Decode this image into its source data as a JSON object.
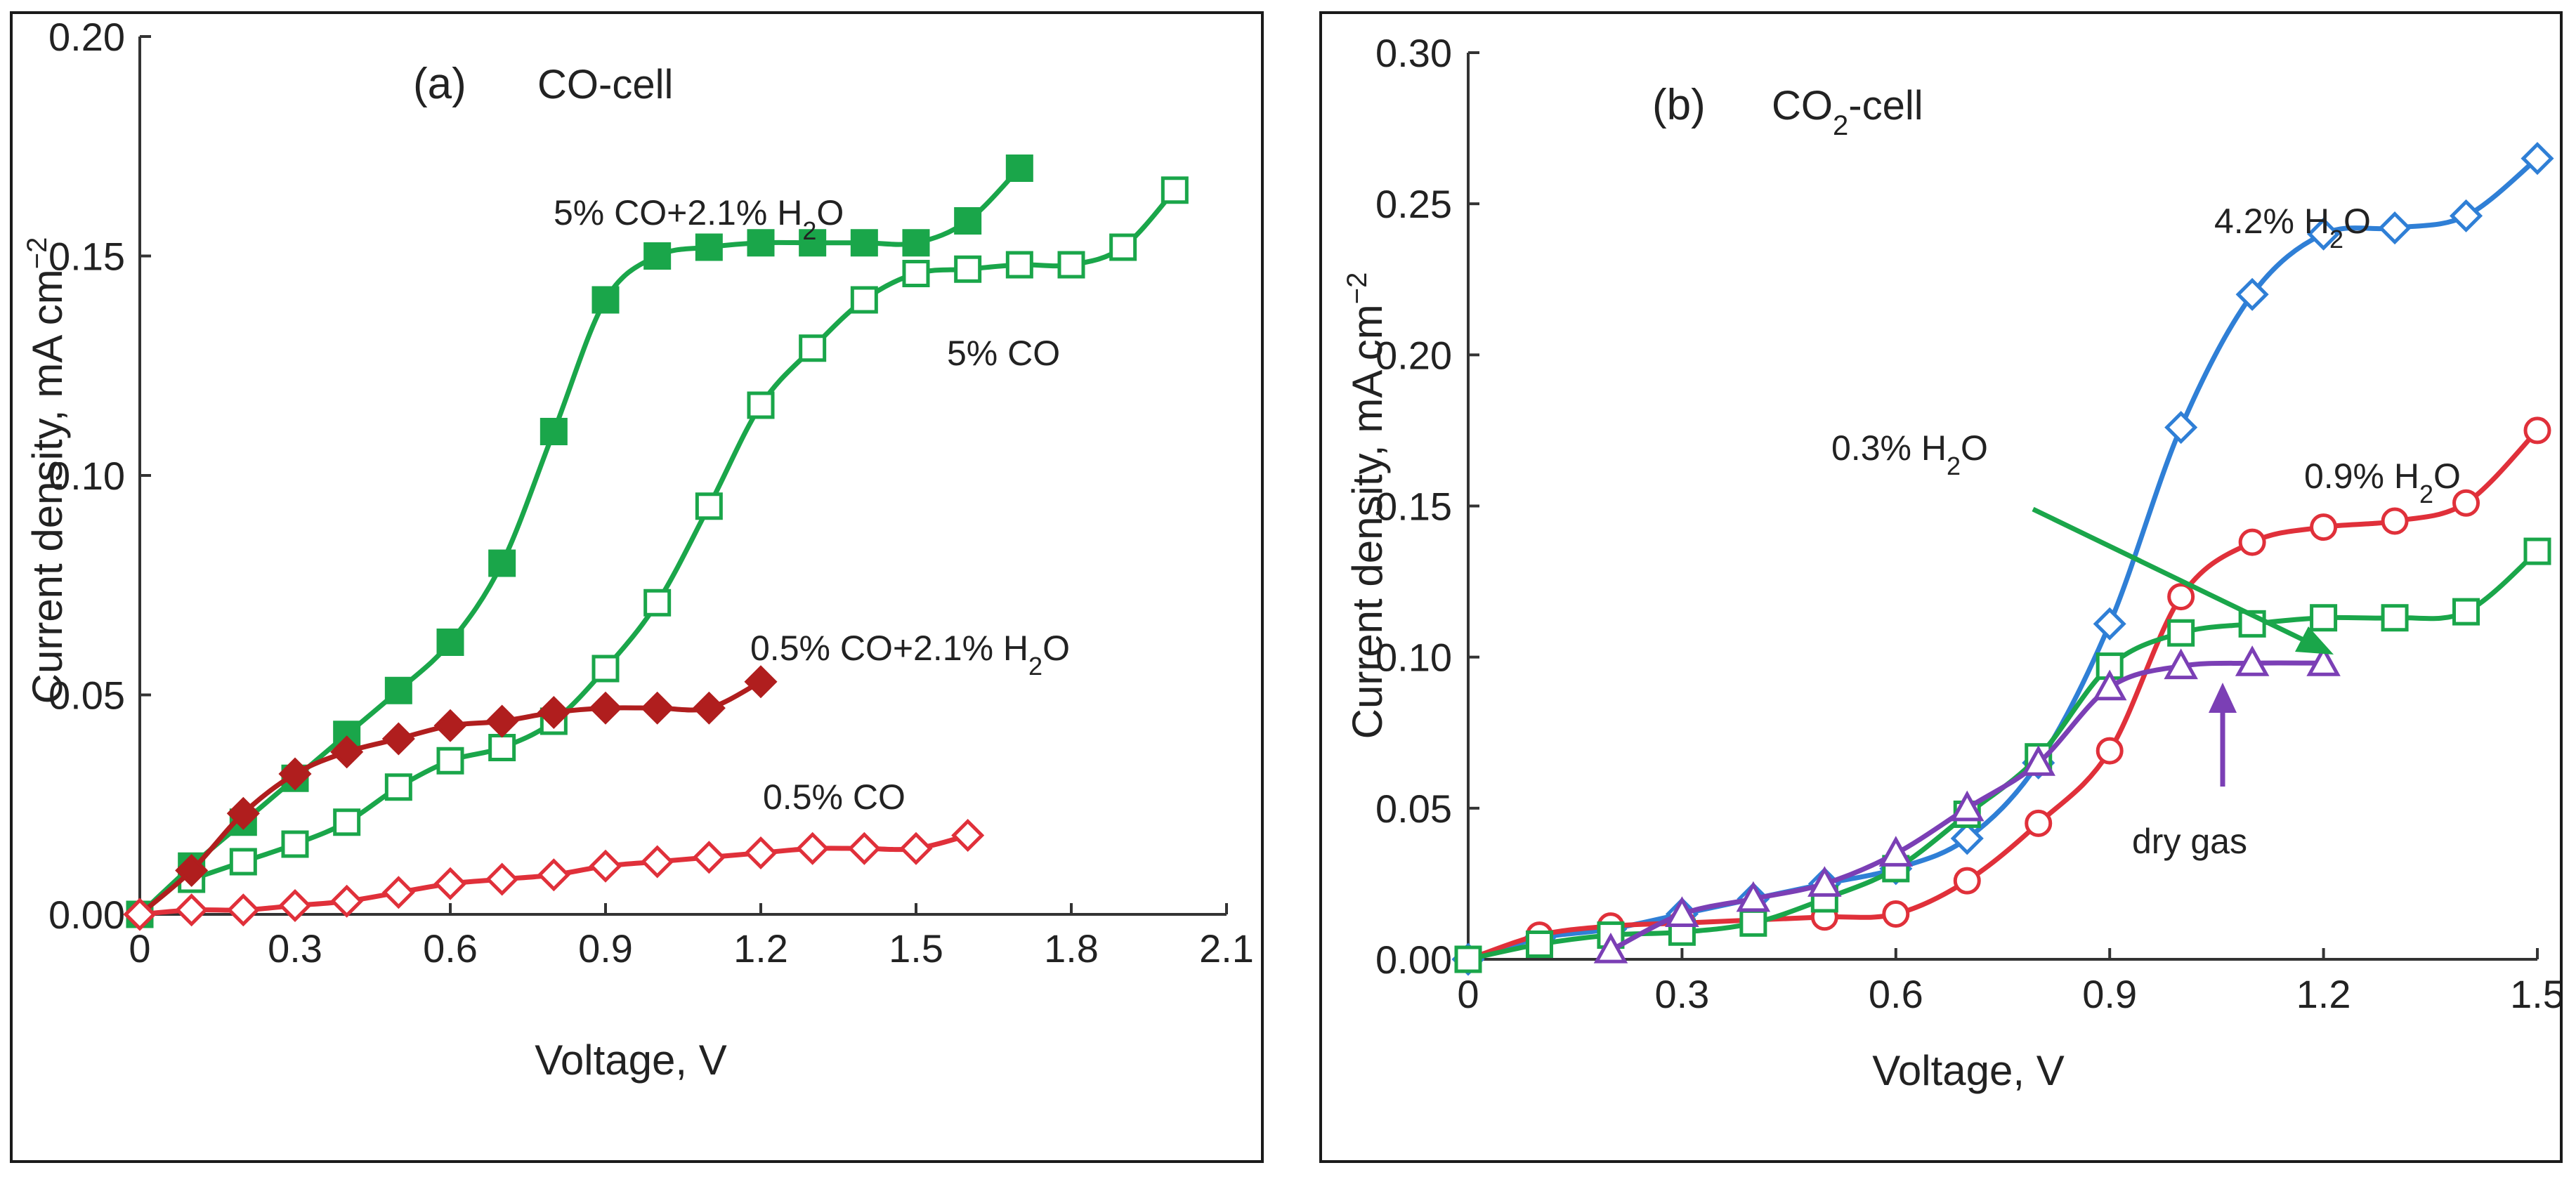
{
  "chart_data": [
    {
      "type": "line",
      "panel_tag": "(a)",
      "title_main": "CO-cell",
      "title_sub": "",
      "title_tail": "",
      "xlabel": "Voltage, V",
      "ylabel": "Current density, mA cm",
      "ylabel_sup": "−2",
      "xlim": [
        0,
        2.1
      ],
      "ylim": [
        0,
        0.2
      ],
      "xticks": [
        "0",
        "0.3",
        "0.6",
        "0.9",
        "1.2",
        "1.5",
        "1.8",
        "2.1"
      ],
      "yticks": [
        "0.00",
        "0.05",
        "0.10",
        "0.15",
        "0.20"
      ],
      "grid": false,
      "series": [
        {
          "label": {
            "t1": "5% CO+2.1% H",
            "t2": "2",
            "t3": "O"
          },
          "color": "#1aa64a",
          "marker": "square-filled",
          "x": [
            0,
            0.1,
            0.2,
            0.3,
            0.4,
            0.5,
            0.6,
            0.7,
            0.8,
            0.9,
            1.0,
            1.1,
            1.2,
            1.3,
            1.4,
            1.5,
            1.6,
            1.7
          ],
          "y": [
            0,
            0.011,
            0.021,
            0.031,
            0.041,
            0.051,
            0.062,
            0.08,
            0.11,
            0.14,
            0.15,
            0.152,
            0.153,
            0.153,
            0.153,
            0.153,
            0.158,
            0.17
          ]
        },
        {
          "label": {
            "t1": "5% CO",
            "t2": "",
            "t3": ""
          },
          "color": "#1aa64a",
          "marker": "square-open",
          "x": [
            0.1,
            0.2,
            0.3,
            0.4,
            0.5,
            0.6,
            0.7,
            0.8,
            0.9,
            1.0,
            1.1,
            1.2,
            1.3,
            1.4,
            1.5,
            1.6,
            1.7,
            1.8,
            1.9,
            2.0
          ],
          "y": [
            0.008,
            0.012,
            0.016,
            0.021,
            0.029,
            0.035,
            0.038,
            0.044,
            0.056,
            0.071,
            0.093,
            0.116,
            0.129,
            0.14,
            0.146,
            0.147,
            0.148,
            0.148,
            0.152,
            0.165
          ]
        },
        {
          "label": {
            "t1": "0.5% CO+2.1% H",
            "t2": "2",
            "t3": "O"
          },
          "color": "#b01e1e",
          "marker": "diamond-filled",
          "x": [
            0,
            0.1,
            0.2,
            0.3,
            0.4,
            0.5,
            0.6,
            0.7,
            0.8,
            0.9,
            1.0,
            1.1,
            1.2
          ],
          "y": [
            0,
            0.01,
            0.023,
            0.032,
            0.037,
            0.04,
            0.043,
            0.044,
            0.046,
            0.047,
            0.047,
            0.047,
            0.053
          ]
        },
        {
          "label": {
            "t1": "0.5% CO",
            "t2": "",
            "t3": ""
          },
          "color": "#e0303a",
          "marker": "diamond-open",
          "x": [
            0,
            0.1,
            0.2,
            0.3,
            0.4,
            0.5,
            0.6,
            0.7,
            0.8,
            0.9,
            1.0,
            1.1,
            1.2,
            1.3,
            1.4,
            1.5,
            1.6
          ],
          "y": [
            0,
            0.001,
            0.001,
            0.002,
            0.003,
            0.005,
            0.007,
            0.008,
            0.009,
            0.011,
            0.012,
            0.013,
            0.014,
            0.015,
            0.015,
            0.015,
            0.018
          ]
        }
      ]
    },
    {
      "type": "line",
      "panel_tag": "(b)",
      "title_main": "CO",
      "title_sub": "2",
      "title_tail": "-cell",
      "xlabel": "Voltage, V",
      "ylabel": "Current density, mA cm",
      "ylabel_sup": "−2",
      "xlim": [
        0,
        1.5
      ],
      "ylim": [
        0,
        0.3
      ],
      "xticks": [
        "0",
        "0.3",
        "0.6",
        "0.9",
        "1.2",
        "1.5"
      ],
      "yticks": [
        "0.00",
        "0.05",
        "0.10",
        "0.15",
        "0.20",
        "0.25",
        "0.30"
      ],
      "grid": false,
      "series": [
        {
          "label": {
            "t1": "4.2% H",
            "t2": "2",
            "t3": "O"
          },
          "color": "#2f7fd6",
          "marker": "diamond-open",
          "x": [
            0,
            0.1,
            0.2,
            0.3,
            0.4,
            0.5,
            0.6,
            0.7,
            0.8,
            0.9,
            1.0,
            1.1,
            1.2,
            1.3,
            1.4,
            1.5
          ],
          "y": [
            0,
            0.007,
            0.01,
            0.015,
            0.02,
            0.025,
            0.03,
            0.04,
            0.065,
            0.111,
            0.176,
            0.22,
            0.24,
            0.242,
            0.246,
            0.265
          ]
        },
        {
          "label": {
            "t1": "0.9% H",
            "t2": "2",
            "t3": "O"
          },
          "color": "#e0303a",
          "marker": "circle-open",
          "x": [
            0,
            0.1,
            0.2,
            0.3,
            0.4,
            0.5,
            0.6,
            0.7,
            0.8,
            0.9,
            1.0,
            1.1,
            1.2,
            1.3,
            1.4,
            1.5
          ],
          "y": [
            0,
            0.008,
            0.011,
            0.012,
            0.013,
            0.014,
            0.015,
            0.026,
            0.045,
            0.069,
            0.12,
            0.138,
            0.143,
            0.145,
            0.151,
            0.175
          ]
        },
        {
          "label": {
            "t1": "0.3% H",
            "t2": "2",
            "t3": "O"
          },
          "color": "#1aa64a",
          "marker": "square-open",
          "x": [
            0,
            0.1,
            0.2,
            0.3,
            0.4,
            0.5,
            0.6,
            0.7,
            0.8,
            0.9,
            1.0,
            1.1,
            1.2,
            1.3,
            1.4,
            1.5
          ],
          "y": [
            0,
            0.005,
            0.008,
            0.009,
            0.012,
            0.02,
            0.03,
            0.048,
            0.067,
            0.097,
            0.108,
            0.111,
            0.113,
            0.113,
            0.115,
            0.135
          ]
        },
        {
          "label": {
            "t1": "dry gas",
            "t2": "",
            "t3": ""
          },
          "color": "#7b3fb5",
          "marker": "triangle-open",
          "x": [
            0.2,
            0.3,
            0.4,
            0.5,
            0.6,
            0.7,
            0.8,
            0.9,
            1.0,
            1.1,
            1.2
          ],
          "y": [
            0.003,
            0.015,
            0.02,
            0.025,
            0.035,
            0.05,
            0.065,
            0.09,
            0.097,
            0.098,
            0.098
          ]
        }
      ]
    }
  ]
}
